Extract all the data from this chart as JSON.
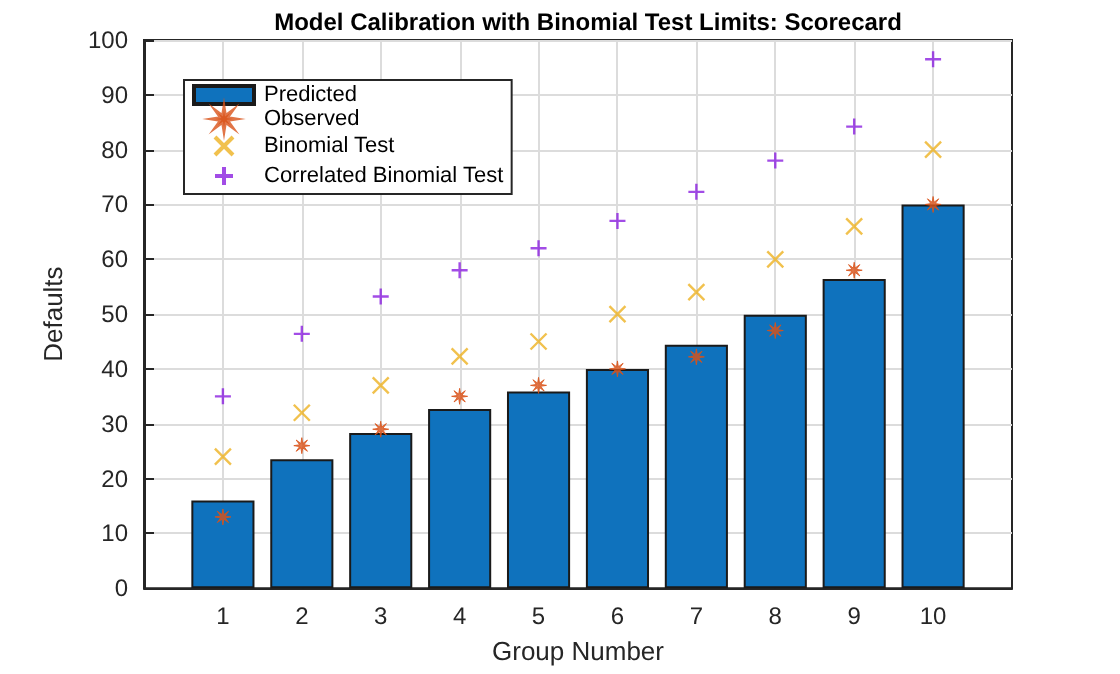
{
  "chart_data": {
    "type": "bar",
    "title": "Model Calibration with Binomial Test Limits: Scorecard",
    "xlabel": "Group Number",
    "ylabel": "Defaults",
    "x": [
      1,
      2,
      3,
      4,
      5,
      6,
      7,
      8,
      9,
      10
    ],
    "xlim": [
      0,
      11
    ],
    "xticks": [
      1,
      2,
      3,
      4,
      5,
      6,
      7,
      8,
      9,
      10
    ],
    "ylim": [
      0,
      100
    ],
    "yticks": [
      0,
      10,
      20,
      30,
      40,
      50,
      60,
      70,
      80,
      90,
      100
    ],
    "grid": true,
    "legend": "top left",
    "series": [
      {
        "name": "Predicted",
        "color": "#0f72bd",
        "values": [
          16,
          23.5,
          28.3,
          32.7,
          35.9,
          40,
          44.4,
          49.9,
          56.4,
          70
        ]
      },
      {
        "name": "Observed",
        "type": "scatter",
        "marker": "star",
        "color": "#d95319",
        "values": [
          13,
          26,
          29,
          35,
          37,
          40,
          42.2,
          47,
          58,
          70
        ]
      },
      {
        "name": "Binomial Test",
        "type": "scatter",
        "marker": "cross",
        "color": "#edb120",
        "values": [
          24,
          32,
          37,
          42.3,
          45,
          50,
          54,
          60,
          66,
          80
        ]
      },
      {
        "name": "Correlated Binomial Test",
        "type": "scatter",
        "marker": "plus",
        "color": "#8b1fe0",
        "values": [
          35,
          46.4,
          53.2,
          58,
          62,
          67,
          72.3,
          78,
          84.2,
          96.5
        ]
      }
    ]
  }
}
